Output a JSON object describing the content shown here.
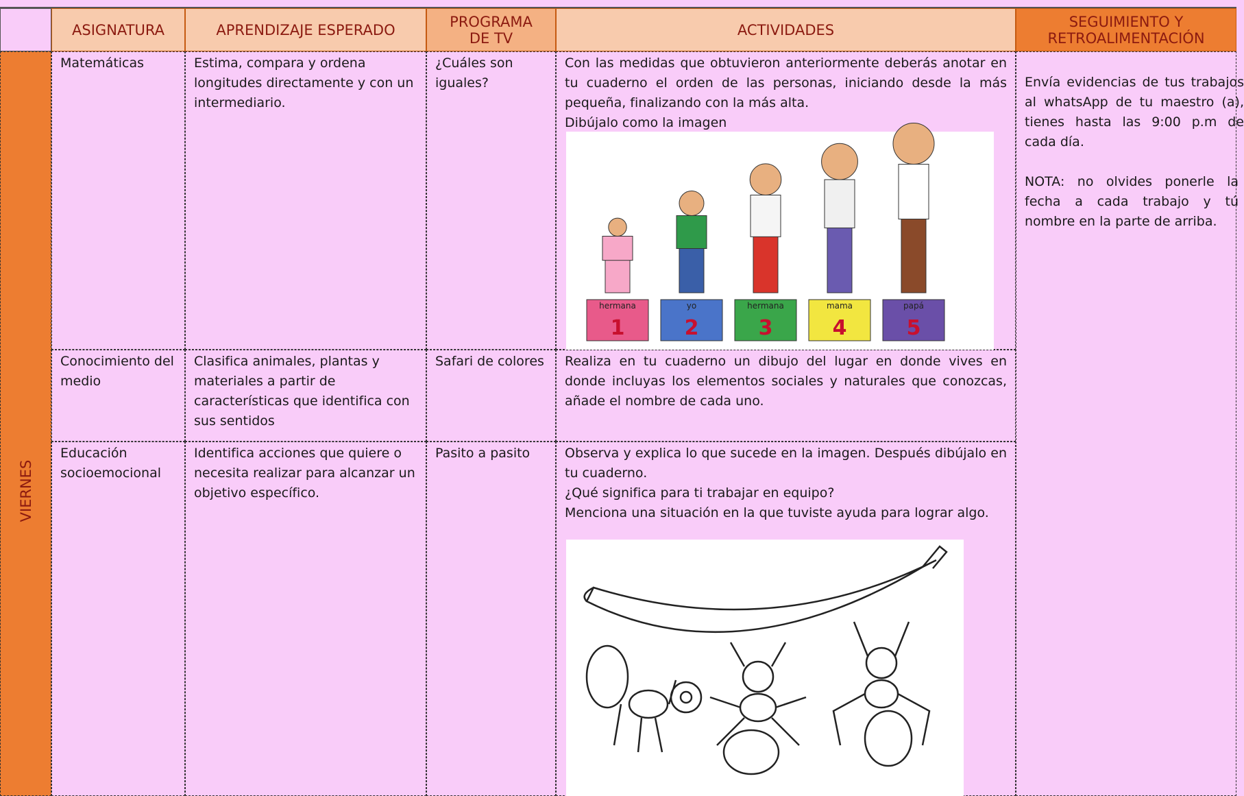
{
  "header": {
    "columns": [
      "ASIGNATURA",
      "APRENDIZAJE ESPERADO",
      "PROGRAMA DE TV",
      "ACTIVIDADES",
      "SEGUIMIENTO Y RETROALIMENTACIÓN"
    ]
  },
  "day": "VIERNES",
  "rows": [
    {
      "subject": "Matemáticas",
      "learning": "Estima, compara y ordena longitudes directamente y con un intermediario.",
      "program": "¿Cuáles son iguales?",
      "activities": [
        "Con las medidas que obtuvieron anteriormente deberás anotar en tu cuaderno el orden de las personas, iniciando desde la más pequeña, finalizando con la más alta.",
        "Dibújalo como la imagen"
      ]
    },
    {
      "subject": "Conocimiento del medio",
      "learning": "Clasifica animales, plantas y materiales a partir de características que identifica con sus sentidos",
      "program": "Safari de colores",
      "activities": [
        "Realiza en tu cuaderno un dibujo del lugar en donde vives en donde incluyas los elementos sociales y naturales que conozcas, añade el nombre de cada uno."
      ]
    },
    {
      "subject": "Educación socioemocional",
      "learning": "Identifica acciones que quiere o necesita realizar para alcanzar un objetivo específico.",
      "program": "Pasito a pasito",
      "activities": [
        "Observa y explica lo que sucede en la imagen. Después dibújalo en tu cuaderno.",
        "¿Qué significa para ti trabajar en equipo?",
        "Menciona una situación en la que tuviste ayuda para lograr algo."
      ]
    }
  ],
  "followup": [
    "Envía evidencias de tus trabajos al whatsApp de tu maestro (a), tienes hasta las 9:00 p.m de cada día.",
    "NOTA: no olvides ponerle la fecha a cada trabajo y tú nombre en la parte de arriba."
  ],
  "images": {
    "people": [
      {
        "tag": "hermana",
        "num": 1
      },
      {
        "tag": "yo",
        "num": 2
      },
      {
        "tag": "hermana",
        "num": 3
      },
      {
        "tag": "mama",
        "num": 4
      },
      {
        "tag": "papá",
        "num": 5
      }
    ]
  }
}
